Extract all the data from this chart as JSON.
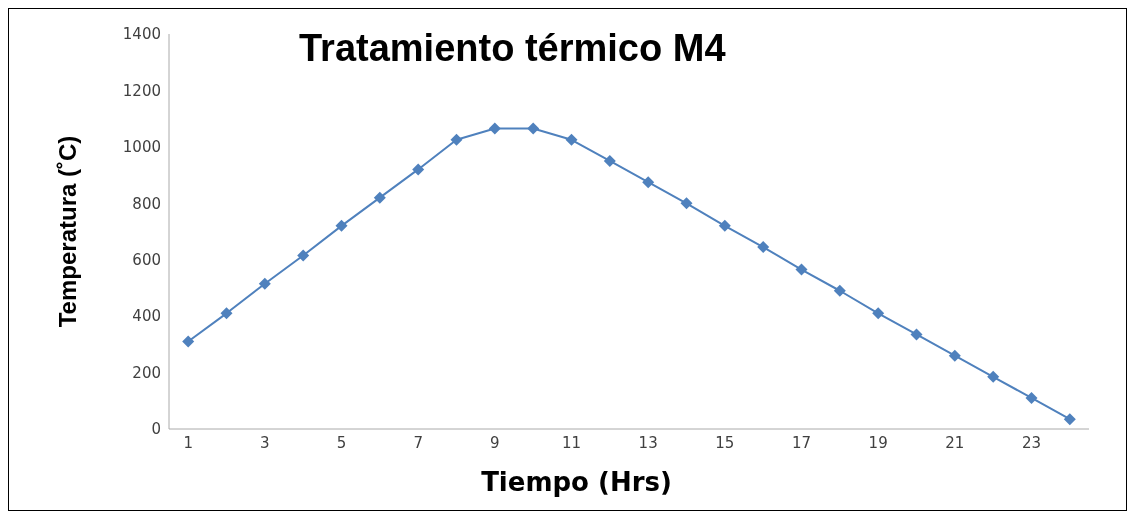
{
  "chart_data": {
    "type": "line",
    "title": "Tratamiento térmico M4",
    "xlabel": "Tiempo (Hrs)",
    "ylabel": "Temperatura (˚C)",
    "x": [
      1,
      2,
      3,
      4,
      5,
      6,
      7,
      8,
      9,
      10,
      11,
      12,
      13,
      14,
      15,
      16,
      17,
      18,
      19,
      20,
      21,
      22,
      23,
      24
    ],
    "series": [
      {
        "color": "#4f81bd",
        "values": [
          310,
          410,
          515,
          615,
          720,
          820,
          920,
          1025,
          1065,
          1065,
          1025,
          950,
          875,
          800,
          720,
          645,
          565,
          490,
          410,
          335,
          260,
          185,
          110,
          35
        ]
      }
    ],
    "xlim": [
      0.5,
      24.5
    ],
    "xticks": [
      1,
      3,
      5,
      7,
      9,
      11,
      13,
      15,
      17,
      19,
      21,
      23
    ],
    "ylim": [
      0,
      1400
    ],
    "yticks": [
      0,
      200,
      400,
      600,
      800,
      1000,
      1200,
      1400
    ],
    "grid": false,
    "legend": false,
    "marker": "diamond",
    "line_style": "solid"
  }
}
